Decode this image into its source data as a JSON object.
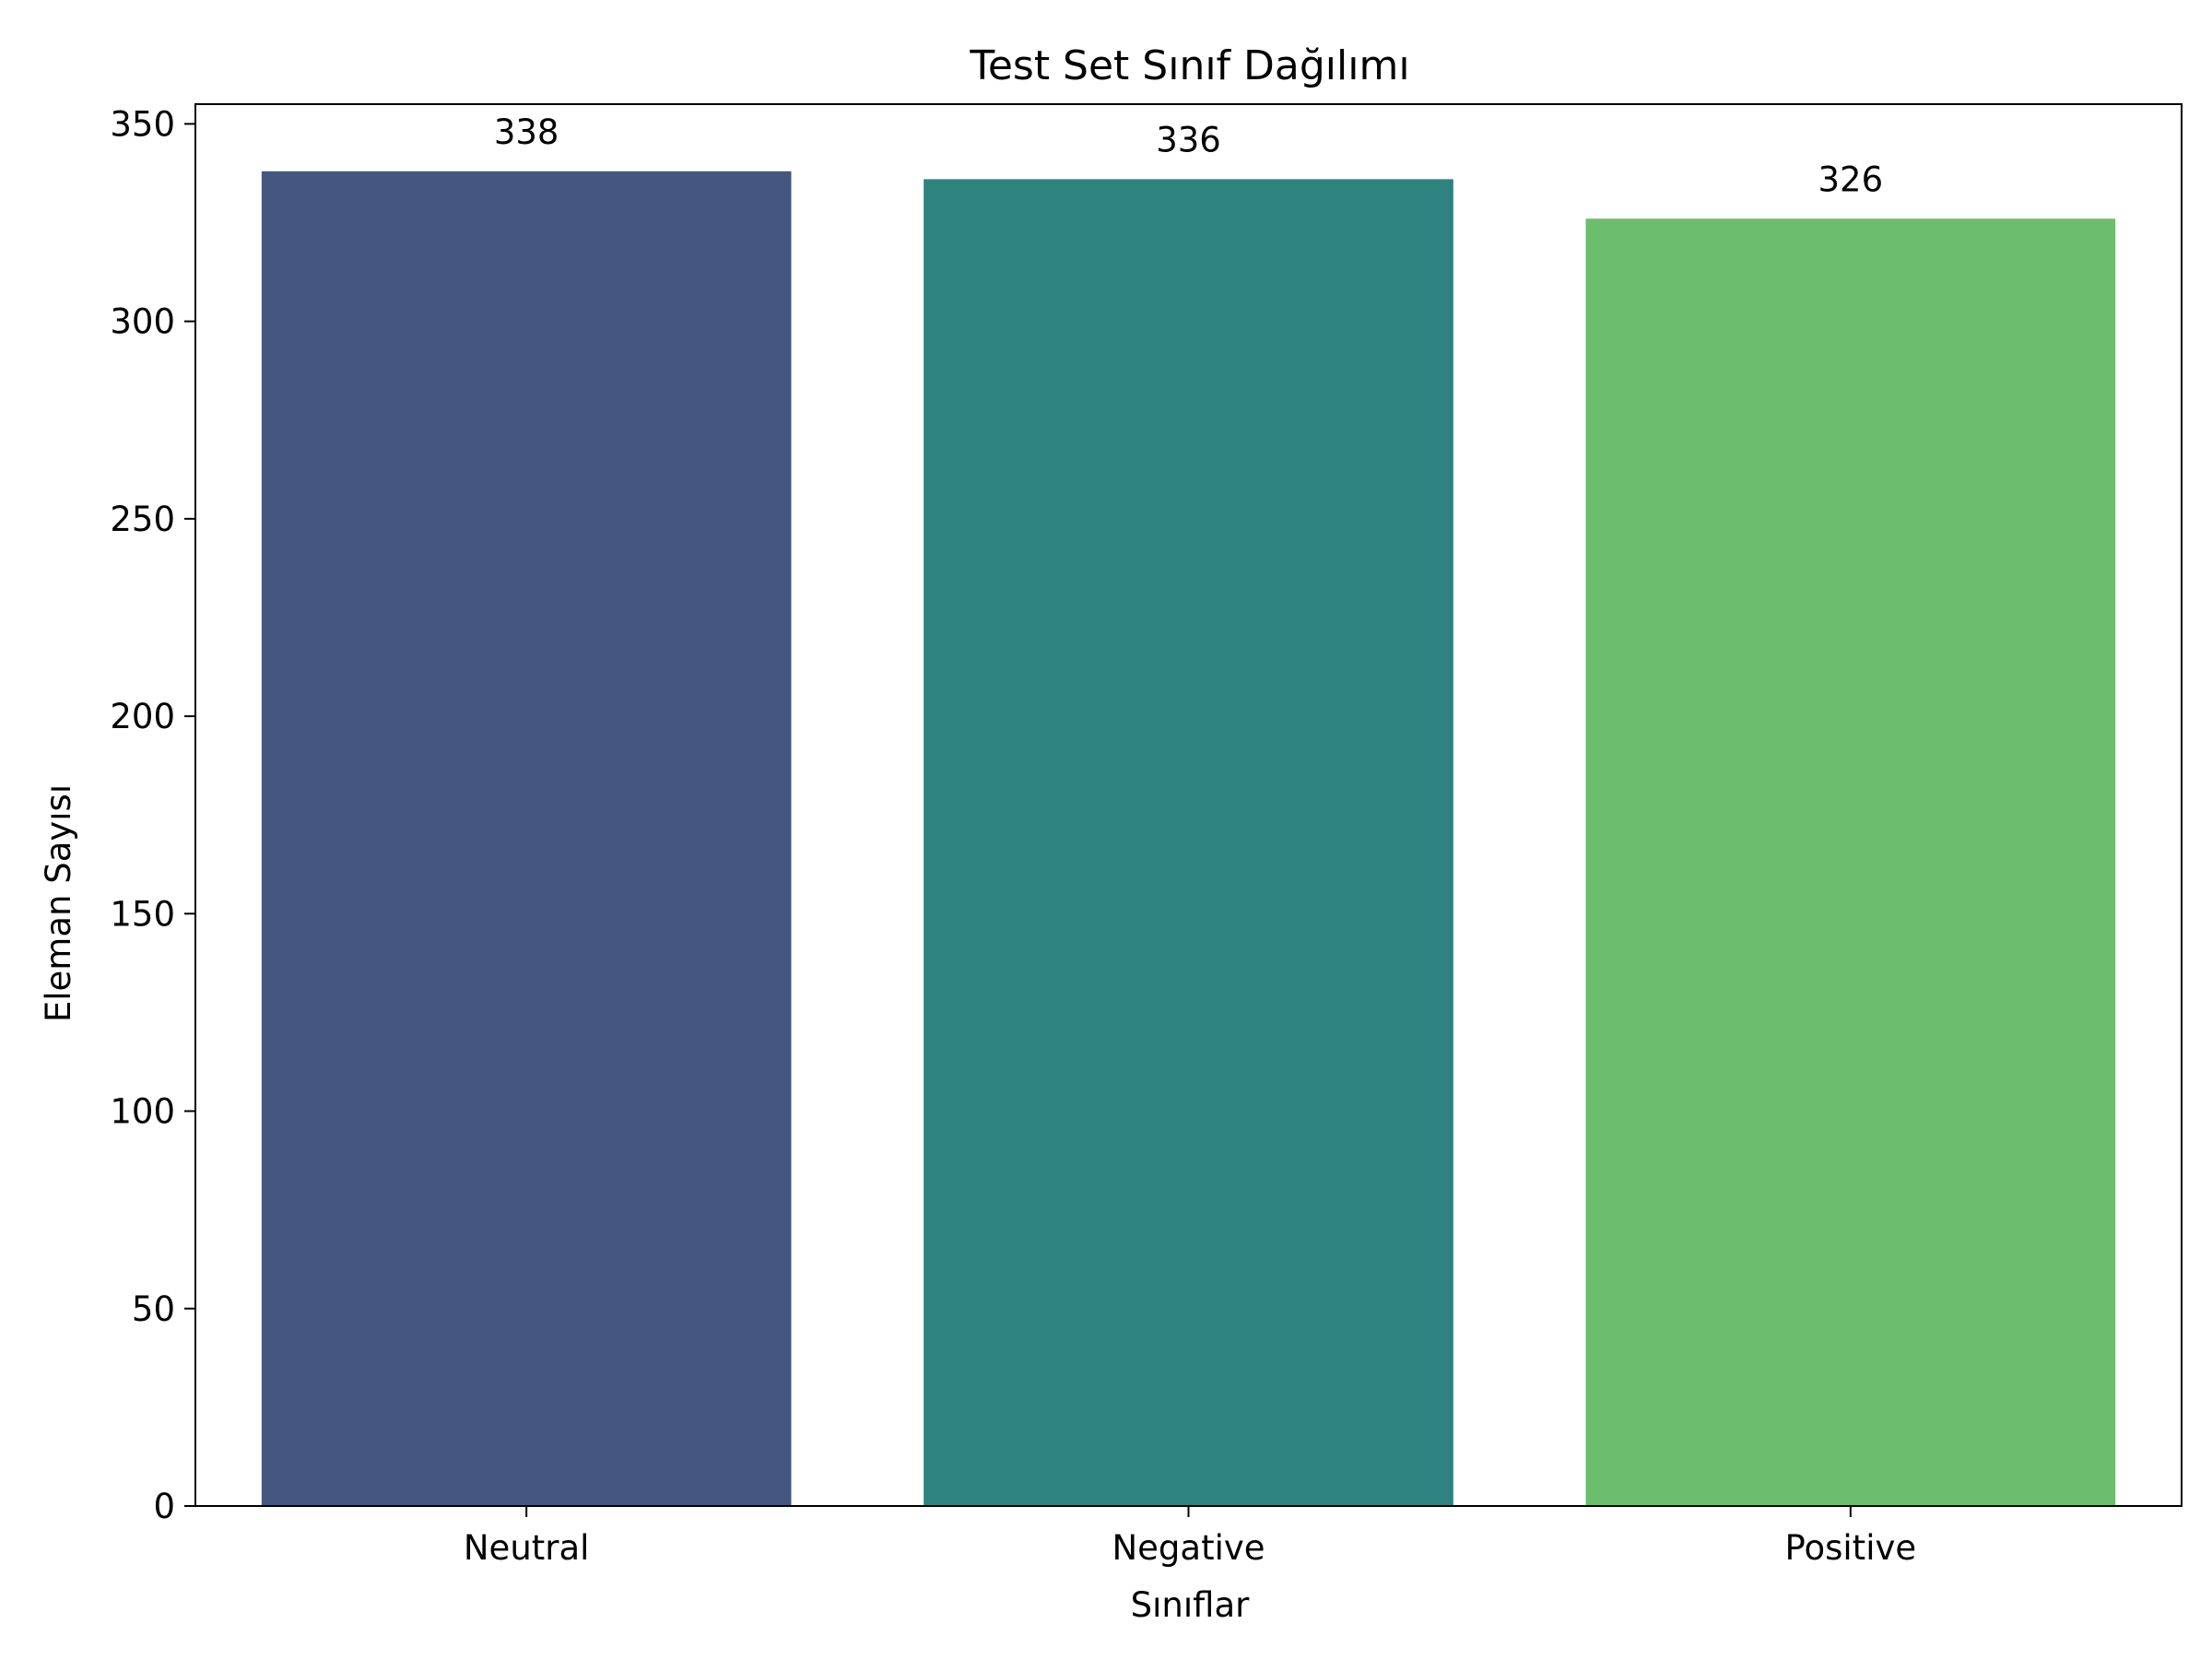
{
  "chart_data": {
    "type": "bar",
    "title": "Test Set Sınıf Dağılımı",
    "xlabel": "Sınıflar",
    "ylabel": "Eleman Sayısı",
    "categories": [
      "Neutral",
      "Negative",
      "Positive"
    ],
    "values": [
      338,
      336,
      326
    ],
    "colors": [
      "#455781",
      "#2e837e",
      "#6cbd6e"
    ],
    "ylim": [
      0,
      355
    ],
    "yticks": [
      0,
      50,
      100,
      150,
      200,
      250,
      300,
      350
    ],
    "ytick_labels": [
      "0",
      "50",
      "100",
      "150",
      "200",
      "250",
      "300",
      "350"
    ],
    "data_labels": [
      "338",
      "336",
      "326"
    ],
    "grid": false,
    "legend": false
  }
}
